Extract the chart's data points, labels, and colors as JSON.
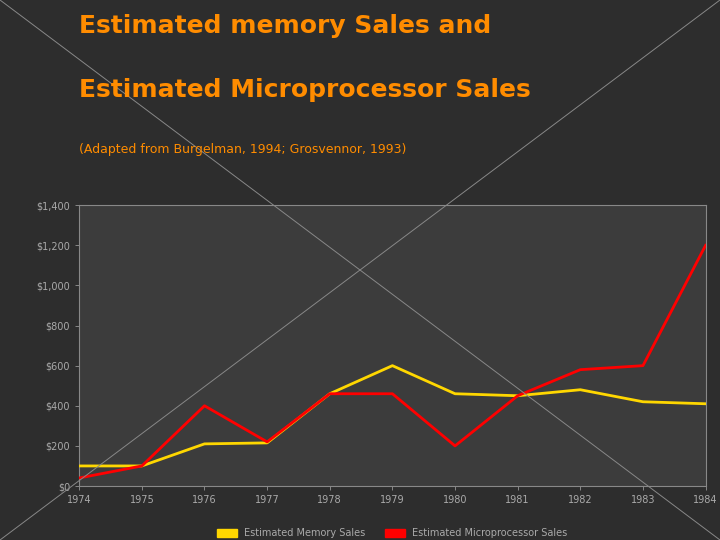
{
  "title_line1": "Estimated memory Sales and",
  "title_line2": "Estimated Microprocessor Sales",
  "subtitle": "(Adapted from Burgelman, 1994; Grosvennor, 1993)",
  "title_color": "#FF8C00",
  "subtitle_color": "#FF8C00",
  "background_color": "#2d2d2d",
  "plot_bg_color": "#3c3c3c",
  "years": [
    1974,
    1975,
    1976,
    1977,
    1978,
    1979,
    1980,
    1981,
    1982,
    1983,
    1984
  ],
  "memory_sales": [
    100,
    100,
    210,
    215,
    460,
    600,
    460,
    450,
    480,
    420,
    410
  ],
  "micro_sales": [
    40,
    100,
    400,
    220,
    460,
    460,
    200,
    450,
    580,
    600,
    1200
  ],
  "memory_color": "#FFD700",
  "micro_color": "#FF0000",
  "ylim": [
    0,
    1400
  ],
  "yticks": [
    0,
    200,
    400,
    600,
    800,
    1000,
    1200,
    1400
  ],
  "legend_memory": "Estimated Memory Sales",
  "legend_micro": "Estimated Microprocessor Sales",
  "line_width": 2.0,
  "tick_color": "#aaaaaa",
  "tick_fontsize": 7,
  "title_fontsize": 18,
  "subtitle_fontsize": 9,
  "legend_fontsize": 7,
  "diag_color": "#888888",
  "diag_linewidth": 0.7,
  "spine_color": "#888888"
}
